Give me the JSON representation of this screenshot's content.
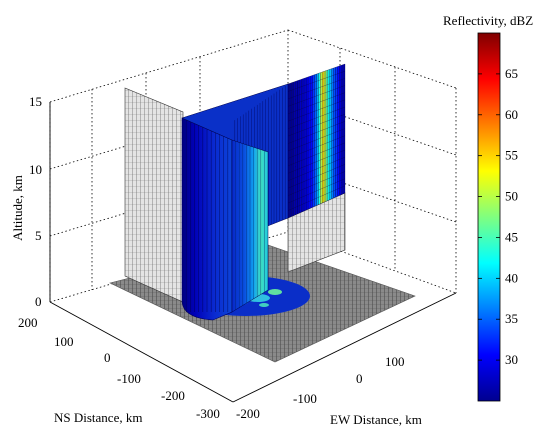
{
  "chart_data": {
    "type": "heatmap",
    "title": "",
    "xlabel": "EW Distance, km",
    "ylabel": "NS Distance, km",
    "zlabel": "Altitude, km",
    "colorbar_label": "Reflectivity, dBZ",
    "z_ticks": [
      "0",
      "5",
      "10",
      "15"
    ],
    "ns_ticks": [
      "200",
      "100",
      "0",
      "-100",
      "-200",
      "-300"
    ],
    "ew_ticks": [
      "-200",
      "-100",
      "0",
      "100"
    ],
    "colorbar_ticks": [
      "30",
      "35",
      "40",
      "45",
      "50",
      "55",
      "60",
      "65"
    ],
    "colorbar_range": [
      25,
      70
    ],
    "z_range": [
      0,
      15
    ],
    "grid": true,
    "colormap": "jet",
    "back_wall_profile_dBZ": [
      26,
      26,
      26,
      27,
      27,
      27,
      28,
      28,
      29,
      29,
      30,
      31,
      31,
      33,
      35,
      38,
      43,
      50,
      54,
      51,
      46,
      42,
      39,
      36,
      34,
      33,
      31,
      29,
      28,
      27
    ]
  }
}
